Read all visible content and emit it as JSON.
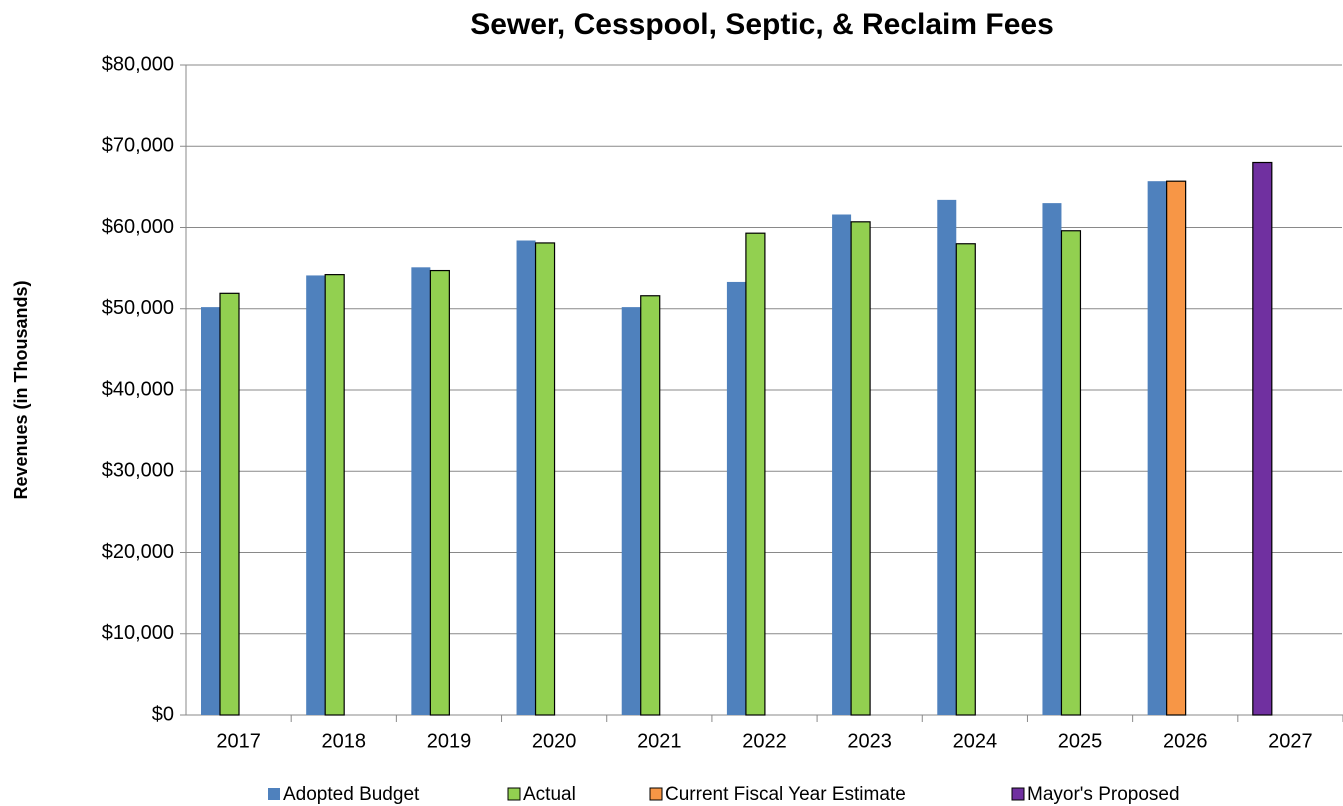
{
  "chart_data": {
    "type": "bar",
    "title": "Sewer, Cesspool, Septic, & Reclaim Fees",
    "y_label": "Revenues (in Thousands)",
    "categories": [
      "2017",
      "2018",
      "2019",
      "2020",
      "2021",
      "2022",
      "2023",
      "2024",
      "2025",
      "2026",
      "2027"
    ],
    "series": [
      {
        "name": "Adopted Budget",
        "color": "#4f81bd",
        "values": [
          50200,
          54100,
          55100,
          58400,
          50200,
          53300,
          61600,
          63400,
          63000,
          65700,
          null
        ]
      },
      {
        "name": "Actual",
        "color": "#92d050",
        "values": [
          51900,
          54200,
          54700,
          58100,
          51600,
          59300,
          60700,
          58000,
          59600,
          null,
          null
        ]
      },
      {
        "name": "Current Fiscal Year Estimate",
        "color": "#f79646",
        "values": [
          null,
          null,
          null,
          null,
          null,
          null,
          null,
          null,
          null,
          65700,
          null
        ]
      },
      {
        "name": "Mayor's Proposed",
        "color": "#7030a0",
        "values": [
          null,
          null,
          null,
          null,
          null,
          null,
          null,
          null,
          null,
          null,
          68000
        ]
      }
    ],
    "ylim": [
      0,
      80000
    ],
    "yticks": [
      {
        "value": 0,
        "label": "$0"
      },
      {
        "value": 10000,
        "label": "$10,000"
      },
      {
        "value": 20000,
        "label": "$20,000"
      },
      {
        "value": 30000,
        "label": "$30,000"
      },
      {
        "value": 40000,
        "label": "$40,000"
      },
      {
        "value": 50000,
        "label": "$50,000"
      },
      {
        "value": 60000,
        "label": "$60,000"
      },
      {
        "value": 70000,
        "label": "$70,000"
      },
      {
        "value": 80000,
        "label": "$80,000"
      }
    ],
    "grid": true,
    "legend": "bottom"
  }
}
